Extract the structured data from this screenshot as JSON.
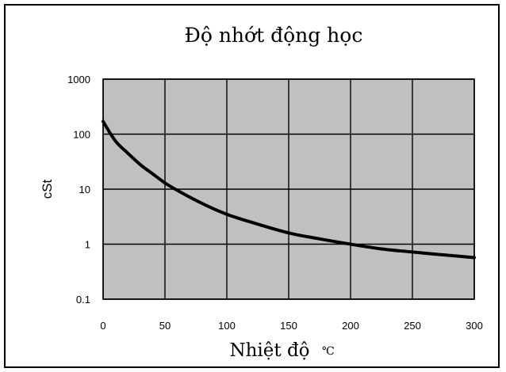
{
  "chart_data": {
    "type": "line",
    "title": "Độ nhớt động học",
    "xlabel": "Nhiệt độ",
    "xlabel_unit": "℃",
    "ylabel": "cSt",
    "xlim": [
      0,
      300
    ],
    "ylim": [
      0.1,
      1000
    ],
    "y_scale": "log",
    "grid": true,
    "x_ticks": [
      "0",
      "50",
      "100",
      "150",
      "200",
      "250",
      "300"
    ],
    "y_ticks": [
      "0.1",
      "1",
      "10",
      "100",
      "1000"
    ],
    "plot_background": "#c0c0c0",
    "line_color": "#000000",
    "series": [
      {
        "x": [
          0,
          10,
          20,
          30,
          40,
          50,
          60,
          80,
          100,
          120,
          150,
          175,
          200,
          225,
          250,
          275,
          300
        ],
        "values": [
          170,
          75,
          45,
          28,
          19,
          13,
          9.5,
          5.5,
          3.5,
          2.5,
          1.6,
          1.25,
          1.0,
          0.82,
          0.72,
          0.64,
          0.57
        ]
      }
    ]
  }
}
